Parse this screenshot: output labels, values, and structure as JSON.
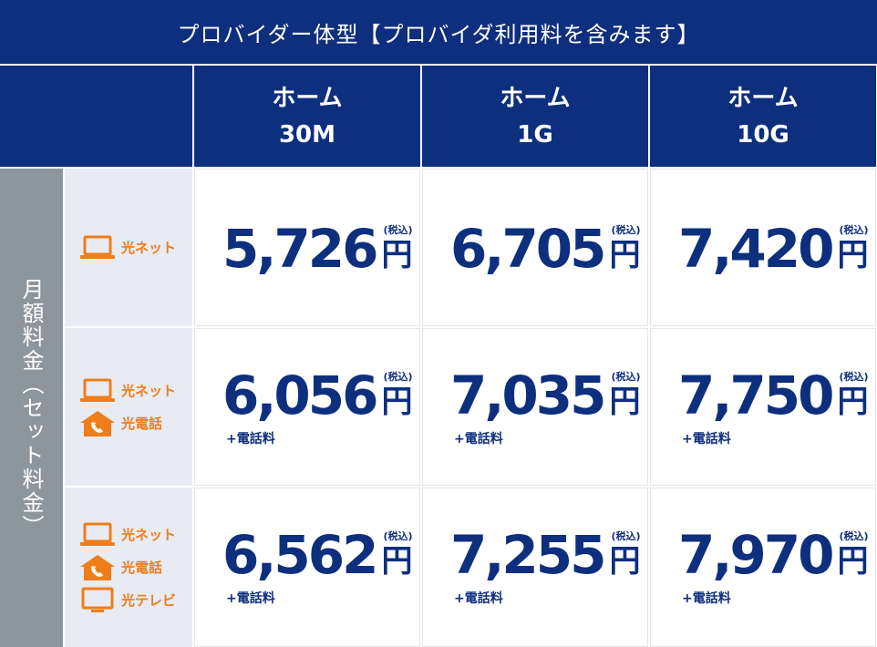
{
  "title": "プロバイダー体型【プロバイダ利用料を含みます】",
  "side_label": "月額料金（セット料金）",
  "plans": [
    {
      "line1": "ホーム",
      "line2": "30M"
    },
    {
      "line1": "ホーム",
      "line2": "1G"
    },
    {
      "line1": "ホーム",
      "line2": "10G"
    }
  ],
  "services": {
    "net": "光ネット",
    "phone": "光電話",
    "tv": "光テレビ"
  },
  "tax_label": "(税込)",
  "yen": "円",
  "extra_label": "+電話料",
  "rows": [
    {
      "prices": [
        "5,726",
        "6,705",
        "7,420"
      ]
    },
    {
      "prices": [
        "6,056",
        "7,035",
        "7,750"
      ]
    },
    {
      "prices": [
        "6,562",
        "7,255",
        "7,970"
      ]
    }
  ],
  "colors": {
    "navy": "#0e2f7e",
    "orange": "#ee7d1a",
    "gray": "#8e969d",
    "service_bg": "#e8ebf3"
  }
}
